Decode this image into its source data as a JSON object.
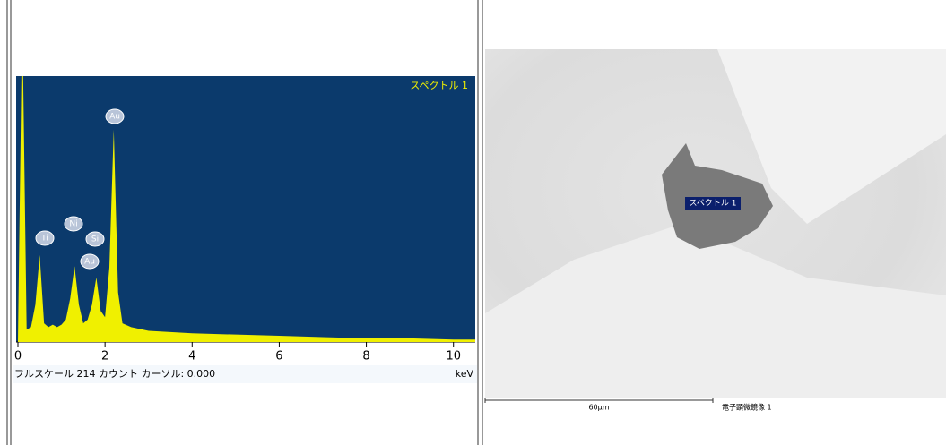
{
  "spectrum": {
    "type": "line",
    "title": "スペクトル 1",
    "x": [
      0,
      0.08,
      0.12,
      0.2,
      0.3,
      0.4,
      0.5,
      0.6,
      0.7,
      0.8,
      0.9,
      1.0,
      1.1,
      1.2,
      1.3,
      1.4,
      1.5,
      1.6,
      1.7,
      1.8,
      1.9,
      2.0,
      2.1,
      2.2,
      2.3,
      2.4,
      2.6,
      3.0,
      3.5,
      4,
      5,
      6,
      7,
      8,
      9,
      10,
      10.5
    ],
    "counts": [
      0,
      214,
      214,
      10,
      12,
      30,
      70,
      15,
      12,
      14,
      12,
      14,
      18,
      35,
      61,
      30,
      15,
      18,
      30,
      52,
      25,
      20,
      60,
      171,
      40,
      15,
      12,
      9,
      8,
      7,
      6,
      5,
      4,
      3,
      3,
      2,
      2
    ],
    "color": "#f0f000",
    "background": "#0b3a6c",
    "xlim": [
      0,
      10.5
    ],
    "ylim": [
      0,
      214
    ],
    "xticks": [
      0,
      2,
      4,
      6,
      8,
      10
    ],
    "peak_labels": [
      "Ti",
      "Ni",
      "Si",
      "Au",
      "Au"
    ],
    "status": "フルスケール 214 カウント カーソル: 0.000",
    "unit": "keV"
  },
  "image": {
    "label": "スペクトル 1",
    "scale_bar": "60µm",
    "caption": "電子顕微鏡像 1"
  }
}
